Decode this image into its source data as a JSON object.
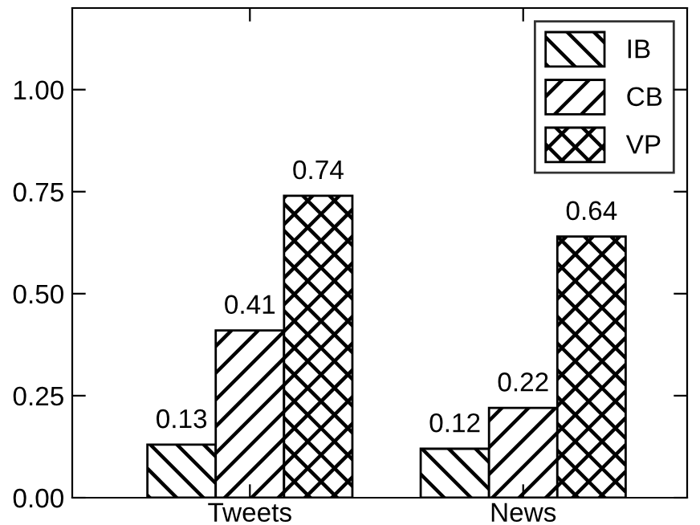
{
  "chart_data": {
    "type": "bar",
    "categories": [
      "Tweets",
      "News"
    ],
    "series": [
      {
        "name": "IB",
        "color": "#000000",
        "values": [
          0.13,
          0.12
        ]
      },
      {
        "name": "CB",
        "color": "#000000",
        "values": [
          0.41,
          0.22
        ]
      },
      {
        "name": "VP",
        "color": "#000000",
        "values": [
          0.74,
          0.64
        ]
      }
    ],
    "ylim": [
      0,
      1.2
    ],
    "yticks": [
      {
        "value": 0,
        "label": "0.00"
      },
      0.25,
      {
        "value": 0.5,
        "label": "0.50"
      },
      0.75,
      {
        "value": 1,
        "label": "1.00"
      }
    ],
    "data_labels": true,
    "legend": "top right",
    "grid": false
  }
}
